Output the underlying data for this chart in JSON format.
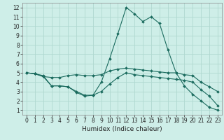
{
  "xlabel": "Humidex (Indice chaleur)",
  "bg_color": "#ceeee8",
  "grid_color": "#b0d8d0",
  "line_color": "#1a6b5e",
  "xlim": [
    -0.5,
    23.5
  ],
  "ylim": [
    0.5,
    12.5
  ],
  "xticks": [
    0,
    1,
    2,
    3,
    4,
    5,
    6,
    7,
    8,
    9,
    10,
    11,
    12,
    13,
    14,
    15,
    16,
    17,
    18,
    19,
    20,
    21,
    22,
    23
  ],
  "yticks": [
    1,
    2,
    3,
    4,
    5,
    6,
    7,
    8,
    9,
    10,
    11,
    12
  ],
  "line1_x": [
    0,
    1,
    2,
    3,
    4,
    5,
    6,
    7,
    8,
    9,
    10,
    11,
    12,
    13,
    14,
    15,
    16,
    17,
    18,
    19,
    20,
    21,
    22,
    23
  ],
  "line1_y": [
    5.0,
    4.9,
    4.7,
    3.6,
    3.6,
    3.5,
    3.0,
    2.6,
    2.6,
    4.0,
    6.5,
    9.2,
    12.0,
    11.3,
    10.5,
    11.0,
    10.3,
    7.5,
    5.0,
    3.6,
    2.7,
    2.0,
    1.3,
    1.0
  ],
  "line2_x": [
    0,
    1,
    2,
    3,
    4,
    5,
    6,
    7,
    8,
    9,
    10,
    11,
    12,
    13,
    14,
    15,
    16,
    17,
    18,
    19,
    20,
    21,
    22,
    23
  ],
  "line2_y": [
    5.0,
    4.9,
    4.6,
    4.5,
    4.5,
    4.7,
    4.8,
    4.7,
    4.7,
    4.8,
    5.2,
    5.4,
    5.5,
    5.4,
    5.3,
    5.2,
    5.1,
    5.0,
    5.0,
    4.8,
    4.7,
    4.0,
    3.5,
    3.0
  ],
  "line3_x": [
    0,
    1,
    2,
    3,
    4,
    5,
    6,
    7,
    8,
    9,
    10,
    11,
    12,
    13,
    14,
    15,
    16,
    17,
    18,
    19,
    20,
    21,
    22,
    23
  ],
  "line3_y": [
    5.0,
    4.9,
    4.6,
    3.6,
    3.6,
    3.5,
    2.9,
    2.5,
    2.6,
    3.0,
    3.8,
    4.5,
    5.0,
    4.8,
    4.7,
    4.6,
    4.5,
    4.4,
    4.3,
    4.2,
    4.0,
    3.2,
    2.5,
    1.5
  ],
  "tick_fontsize": 5.5,
  "xlabel_fontsize": 6.5
}
